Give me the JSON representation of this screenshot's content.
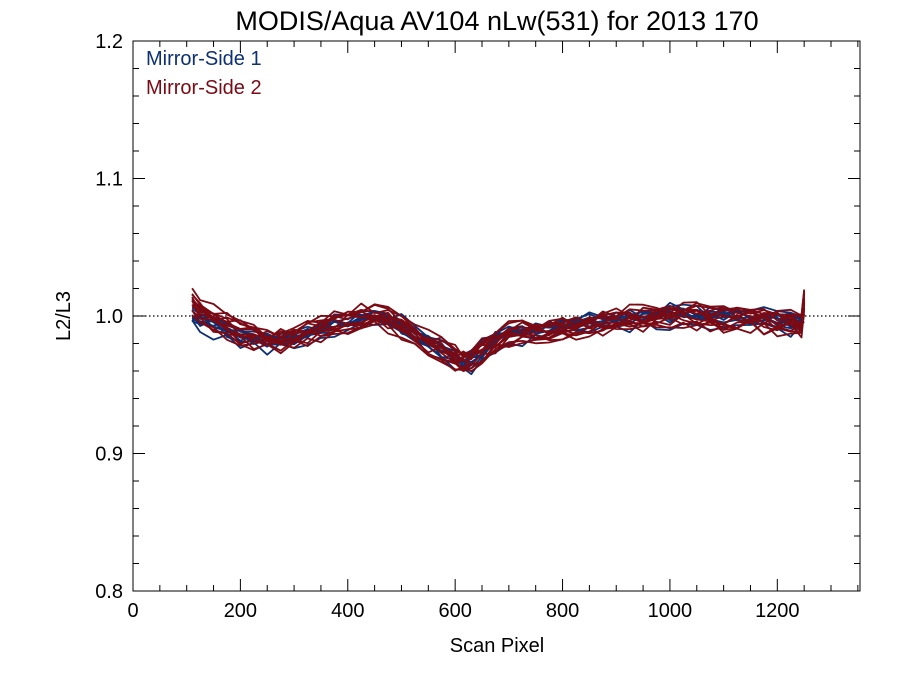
{
  "chart_data": {
    "type": "line",
    "title": "MODIS/Aqua AV104 nLw(531) for 2013 170",
    "xlabel": "Scan Pixel",
    "ylabel": "L2/L3",
    "xlim": [
      0,
      1354
    ],
    "ylim": [
      0.8,
      1.2
    ],
    "xticks": [
      0,
      200,
      400,
      600,
      800,
      1000,
      1200
    ],
    "yticks": [
      0.8,
      0.9,
      1.0,
      1.1,
      1.2
    ],
    "ytick_labels": [
      "0.8",
      "0.9",
      "1.0",
      "1.1",
      "1.2"
    ],
    "reference_line": 1.0,
    "legend_position": "top-left",
    "colors": {
      "mirror_side_1": "#0d2f73",
      "mirror_side_2": "#7a0a14"
    },
    "x": [
      110,
      125,
      150,
      175,
      200,
      225,
      250,
      275,
      300,
      325,
      350,
      375,
      400,
      425,
      450,
      475,
      500,
      525,
      550,
      575,
      600,
      615,
      630,
      650,
      675,
      700,
      725,
      750,
      775,
      800,
      825,
      850,
      875,
      900,
      925,
      950,
      975,
      1000,
      1025,
      1050,
      1075,
      1100,
      1125,
      1150,
      1175,
      1200,
      1225,
      1245,
      1250
    ],
    "series": [
      {
        "name": "Mirror-Side 1",
        "values": [
          0.998,
          0.996,
          0.992,
          0.988,
          0.983,
          0.981,
          0.979,
          0.98,
          0.982,
          0.986,
          0.989,
          0.992,
          0.995,
          0.997,
          0.998,
          0.996,
          0.991,
          0.984,
          0.978,
          0.972,
          0.967,
          0.964,
          0.966,
          0.972,
          0.98,
          0.985,
          0.987,
          0.986,
          0.988,
          0.99,
          0.991,
          0.993,
          0.994,
          0.996,
          0.997,
          0.997,
          0.998,
          0.999,
          1.0,
          0.999,
          0.998,
          0.997,
          0.998,
          0.997,
          0.996,
          0.995,
          0.994,
          0.995,
          1.005
        ]
      },
      {
        "name": "Mirror-Side 2",
        "values": [
          1.01,
          1.005,
          0.999,
          0.993,
          0.988,
          0.985,
          0.983,
          0.983,
          0.985,
          0.988,
          0.991,
          0.994,
          0.997,
          0.999,
          1.0,
          0.998,
          0.993,
          0.986,
          0.98,
          0.975,
          0.97,
          0.968,
          0.969,
          0.974,
          0.981,
          0.986,
          0.988,
          0.988,
          0.989,
          0.991,
          0.992,
          0.994,
          0.995,
          0.997,
          0.998,
          0.998,
          0.999,
          1.001,
          1.001,
          1.0,
          0.999,
          0.998,
          0.999,
          0.998,
          0.997,
          0.996,
          0.995,
          0.992,
          1.012
        ]
      }
    ]
  }
}
